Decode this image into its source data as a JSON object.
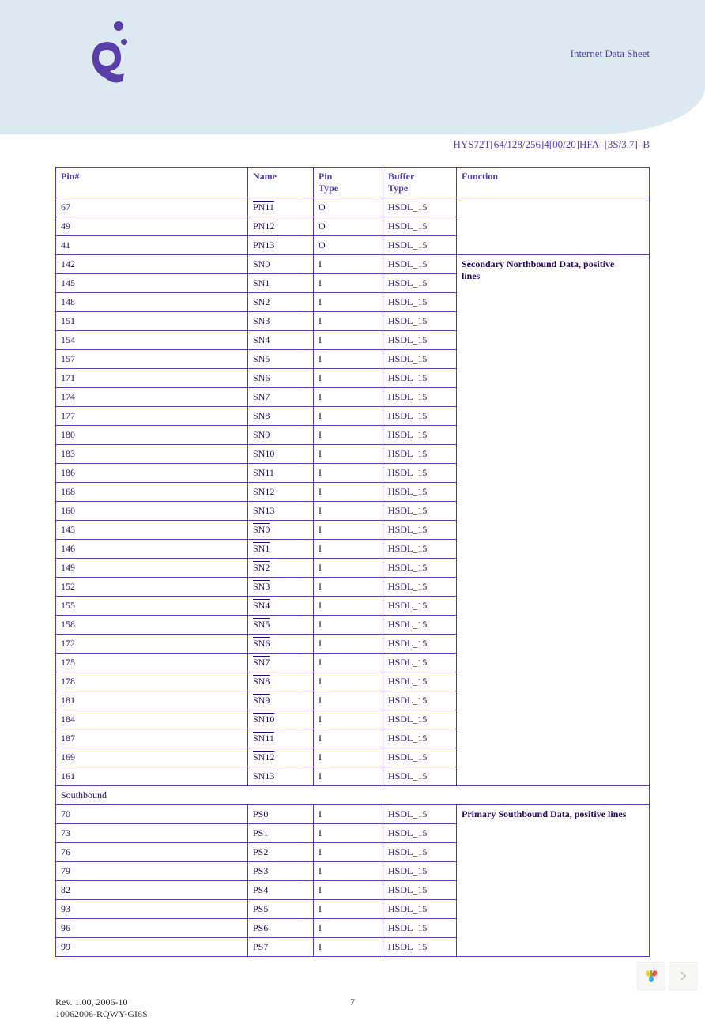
{
  "header": {
    "title": "Internet Data Sheet",
    "part_number": "HYS72T[64/128/256]4[00/20]HFA–[3S/3.7]–B"
  },
  "table": {
    "columns": [
      "Pin#",
      "Name",
      "Pin Type",
      "Buffer Type",
      "Function"
    ],
    "col1_label": "Pin#",
    "col2_label": "Name",
    "col3_line1": "Pin",
    "col3_line2": "Type",
    "col4_line1": "Buffer",
    "col4_line2": "Type",
    "col5_label": "Function",
    "group1_function": "",
    "group1_rows": [
      {
        "pin": "67",
        "name": "PN11",
        "overline": true,
        "pintype": "O",
        "buffer": "HSDL_15"
      },
      {
        "pin": "49",
        "name": "PN12",
        "overline": true,
        "pintype": "O",
        "buffer": "HSDL_15"
      },
      {
        "pin": "41",
        "name": "PN13",
        "overline": true,
        "pintype": "O",
        "buffer": "HSDL_15"
      }
    ],
    "group2_function_line1": "Secondary Northbound Data, positive",
    "group2_function_line2": "lines",
    "group2_rows": [
      {
        "pin": "142",
        "name": "SN0",
        "overline": false,
        "pintype": "I",
        "buffer": "HSDL_15"
      },
      {
        "pin": "145",
        "name": "SN1",
        "overline": false,
        "pintype": "I",
        "buffer": "HSDL_15"
      },
      {
        "pin": "148",
        "name": "SN2",
        "overline": false,
        "pintype": "I",
        "buffer": "HSDL_15"
      },
      {
        "pin": "151",
        "name": "SN3",
        "overline": false,
        "pintype": "I",
        "buffer": "HSDL_15"
      },
      {
        "pin": "154",
        "name": "SN4",
        "overline": false,
        "pintype": "I",
        "buffer": "HSDL_15"
      },
      {
        "pin": "157",
        "name": "SN5",
        "overline": false,
        "pintype": "I",
        "buffer": "HSDL_15"
      },
      {
        "pin": "171",
        "name": "SN6",
        "overline": false,
        "pintype": "I",
        "buffer": "HSDL_15"
      },
      {
        "pin": "174",
        "name": "SN7",
        "overline": false,
        "pintype": "I",
        "buffer": "HSDL_15"
      },
      {
        "pin": "177",
        "name": "SN8",
        "overline": false,
        "pintype": "I",
        "buffer": "HSDL_15"
      },
      {
        "pin": "180",
        "name": "SN9",
        "overline": false,
        "pintype": "I",
        "buffer": "HSDL_15"
      },
      {
        "pin": "183",
        "name": "SN10",
        "overline": false,
        "pintype": "I",
        "buffer": "HSDL_15"
      },
      {
        "pin": "186",
        "name": "SN11",
        "overline": false,
        "pintype": "I",
        "buffer": "HSDL_15"
      },
      {
        "pin": "168",
        "name": "SN12",
        "overline": false,
        "pintype": "I",
        "buffer": "HSDL_15"
      },
      {
        "pin": "160",
        "name": "SN13",
        "overline": false,
        "pintype": "I",
        "buffer": "HSDL_15"
      },
      {
        "pin": "143",
        "name": "SN0",
        "overline": true,
        "pintype": "I",
        "buffer": "HSDL_15"
      },
      {
        "pin": "146",
        "name": "SN1",
        "overline": true,
        "pintype": "I",
        "buffer": "HSDL_15"
      },
      {
        "pin": "149",
        "name": "SN2",
        "overline": true,
        "pintype": "I",
        "buffer": "HSDL_15"
      },
      {
        "pin": "152",
        "name": "SN3",
        "overline": true,
        "pintype": "I",
        "buffer": "HSDL_15"
      },
      {
        "pin": "155",
        "name": "SN4",
        "overline": true,
        "pintype": "I",
        "buffer": "HSDL_15"
      },
      {
        "pin": "158",
        "name": "SN5",
        "overline": true,
        "pintype": "I",
        "buffer": "HSDL_15"
      },
      {
        "pin": "172",
        "name": "SN6",
        "overline": true,
        "pintype": "I",
        "buffer": "HSDL_15"
      },
      {
        "pin": "175",
        "name": "SN7",
        "overline": true,
        "pintype": "I",
        "buffer": "HSDL_15"
      },
      {
        "pin": "178",
        "name": "SN8",
        "overline": true,
        "pintype": "I",
        "buffer": "HSDL_15"
      },
      {
        "pin": "181",
        "name": "SN9",
        "overline": true,
        "pintype": "I",
        "buffer": "HSDL_15"
      },
      {
        "pin": "184",
        "name": "SN10",
        "overline": true,
        "pintype": "I",
        "buffer": "HSDL_15"
      },
      {
        "pin": "187",
        "name": "SN11",
        "overline": true,
        "pintype": "I",
        "buffer": "HSDL_15"
      },
      {
        "pin": "169",
        "name": "SN12",
        "overline": true,
        "pintype": "I",
        "buffer": "HSDL_15"
      },
      {
        "pin": "161",
        "name": "SN13",
        "overline": true,
        "pintype": "I",
        "buffer": "HSDL_15"
      }
    ],
    "section_label": "Southbound",
    "group3_function": "Primary Southbound Data, positive lines",
    "group3_rows": [
      {
        "pin": "70",
        "name": "PS0",
        "overline": false,
        "pintype": "I",
        "buffer": "HSDL_15"
      },
      {
        "pin": "73",
        "name": "PS1",
        "overline": false,
        "pintype": "I",
        "buffer": "HSDL_15"
      },
      {
        "pin": "76",
        "name": "PS2",
        "overline": false,
        "pintype": "I",
        "buffer": "HSDL_15"
      },
      {
        "pin": "79",
        "name": "PS3",
        "overline": false,
        "pintype": "I",
        "buffer": "HSDL_15"
      },
      {
        "pin": "82",
        "name": "PS4",
        "overline": false,
        "pintype": "I",
        "buffer": "HSDL_15"
      },
      {
        "pin": "93",
        "name": "PS5",
        "overline": false,
        "pintype": "I",
        "buffer": "HSDL_15"
      },
      {
        "pin": "96",
        "name": "PS6",
        "overline": false,
        "pintype": "I",
        "buffer": "HSDL_15"
      },
      {
        "pin": "99",
        "name": "PS7",
        "overline": false,
        "pintype": "I",
        "buffer": "HSDL_15"
      }
    ]
  },
  "footer": {
    "rev": "Rev. 1.00, 2006-10",
    "doc": "10062006-RQWY-GI6S",
    "page": "7"
  },
  "colors": {
    "header_bg": "#dde9f1",
    "accent": "#5a3ea8",
    "text": "#2a0a5e"
  }
}
